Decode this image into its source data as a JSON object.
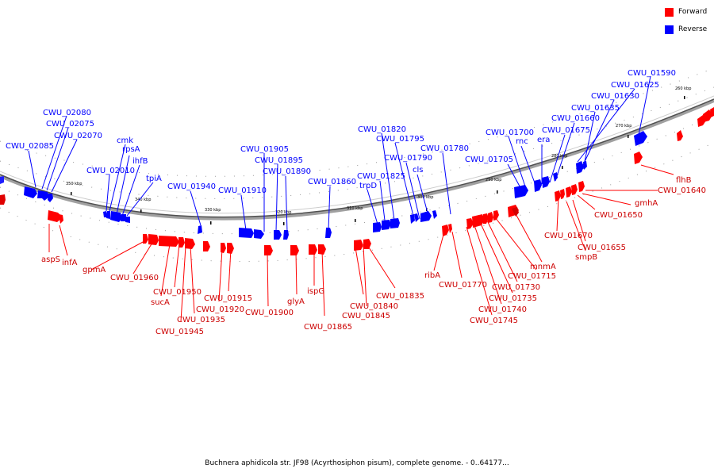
{
  "legend": {
    "forward_label": "Forward",
    "reverse_label": "Reverse",
    "forward_color": "#ff0000",
    "reverse_color": "#0000ff"
  },
  "footer_text": "Buchnera aphidicola str. JF98 (Acyrthosiphon pisum), complete genome. - 0..64177...",
  "ticks": [
    "350 kbp",
    "340 kbp",
    "330 kbp",
    "320 kbp",
    "310 kbp",
    "300 kbp",
    "290 kbp",
    "280 kbp",
    "270 kbp",
    "260 kbp"
  ],
  "reverse_genes": [
    "CWU_02085",
    "CWU_02080",
    "CWU_02075",
    "CWU_02070",
    "CWU_02010",
    "cmk",
    "rpsA",
    "ihfB",
    "tpiA",
    "CWU_01940",
    "CWU_01910",
    "CWU_01905",
    "CWU_01895",
    "CWU_01890",
    "CWU_01860",
    "trpD",
    "CWU_01825",
    "CWU_01820",
    "CWU_01795",
    "CWU_01790",
    "cls",
    "CWU_01780",
    "CWU_01705",
    "CWU_01700",
    "rnc",
    "era",
    "CWU_01675",
    "CWU_01660",
    "CWU_01635",
    "CWU_01630",
    "CWU_01625",
    "CWU_01590"
  ],
  "forward_genes": [
    "aspS",
    "infA",
    "gpmA",
    "CWU_01960",
    "sucA",
    "CWU_01950",
    "CWU_01945",
    "CWU_01935",
    "CWU_01920",
    "CWU_01915",
    "CWU_01900",
    "glyA",
    "ispG",
    "CWU_01865",
    "CWU_01840",
    "CWU_01845",
    "CWU_01835",
    "ribA",
    "CWU_01770",
    "CWU_01745",
    "CWU_01740",
    "CWU_01735",
    "CWU_01730",
    "CWU_01715",
    "mnmA",
    "smpB",
    "CWU_01670",
    "CWU_01655",
    "CWU_01650",
    "gmhA",
    "CWU_01640",
    "flhB"
  ]
}
